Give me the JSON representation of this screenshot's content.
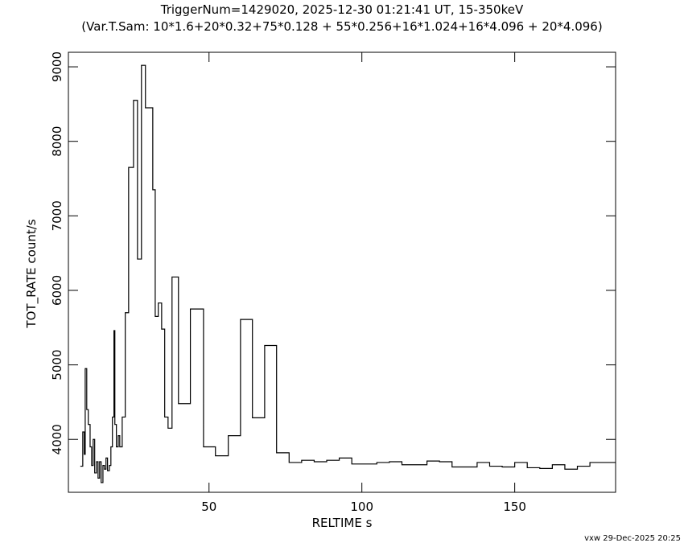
{
  "chart_data": {
    "type": "line",
    "step": "post",
    "title": "TriggerNum=1429020, 2025-12-30 01:21:41 UT, 15-350keV",
    "subtitle": "(Var.T.Sam: 10*1.6+20*0.32+75*0.128  +  55*0.256+16*1.024+16*4.096  +  20*4.096)",
    "x_label": "RELTIME  s",
    "y_label": "TOT_RATE  count/s",
    "footer": "vxw 29-Dec-2025 20:25",
    "xlim": [
      4,
      183
    ],
    "ylim": [
      3290,
      9195
    ],
    "xticks": [
      50,
      100,
      150
    ],
    "yticks": [
      4000,
      5000,
      6000,
      7000,
      8000,
      9000
    ],
    "color": "#000000",
    "x": [
      7.9,
      8.7,
      9.2,
      9.5,
      10.0,
      10.5,
      11.1,
      11.6,
      12.1,
      12.6,
      13.2,
      13.7,
      14.2,
      14.7,
      15.3,
      15.8,
      16.3,
      16.8,
      17.4,
      17.9,
      18.4,
      18.9,
      19.2,
      19.7,
      20.3,
      20.8,
      21.6,
      22.6,
      23.7,
      25.3,
      26.6,
      27.9,
      29.2,
      31.6,
      32.4,
      33.4,
      34.5,
      35.5,
      36.6,
      37.9,
      40.0,
      43.9,
      48.2,
      52.1,
      56.3,
      60.3,
      64.2,
      68.2,
      72.1,
      76.2,
      80.3,
      84.4,
      88.5,
      92.6,
      96.7,
      100.8,
      104.9,
      109.0,
      113.1,
      117.2,
      121.3,
      125.4,
      129.5,
      133.6,
      137.7,
      141.8,
      145.9,
      150.0,
      154.1,
      158.2,
      162.3,
      166.4,
      170.5,
      174.6,
      183
    ],
    "values": [
      3640,
      4100,
      3800,
      4950,
      4400,
      4200,
      3900,
      3650,
      4000,
      3550,
      3700,
      3480,
      3700,
      3420,
      3650,
      3600,
      3750,
      3580,
      3650,
      3900,
      4300,
      5460,
      4200,
      3900,
      4050,
      3900,
      4300,
      5700,
      7650,
      8550,
      6420,
      9020,
      8450,
      7350,
      5650,
      5830,
      5480,
      4300,
      4150,
      6180,
      4480,
      5750,
      3900,
      3780,
      4050,
      5610,
      4290,
      5260,
      3820,
      3690,
      3720,
      3700,
      3720,
      3750,
      3670,
      3670,
      3690,
      3700,
      3660,
      3660,
      3710,
      3700,
      3630,
      3630,
      3690,
      3640,
      3630,
      3690,
      3620,
      3610,
      3660,
      3600,
      3640,
      3690,
      3690
    ]
  }
}
